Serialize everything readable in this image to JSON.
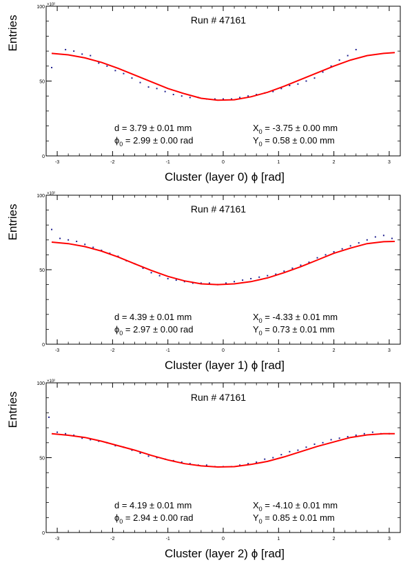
{
  "chart_data": [
    {
      "type": "scatter",
      "title": "Run # 47161",
      "xlabel": "Cluster (layer 0) ϕ [rad]",
      "ylabel": "Entries",
      "y_exponent": "×10²",
      "xlim": [
        -3.2,
        3.2
      ],
      "ylim": [
        0,
        100
      ],
      "xticks": [
        -3,
        -2,
        -1,
        0,
        1,
        2,
        3
      ],
      "yticks": [
        0,
        50,
        100
      ],
      "series": [
        {
          "kind": "data",
          "color": "#1f1f8f",
          "x": [
            -3.1,
            -2.85,
            -2.7,
            -2.55,
            -2.4,
            -2.25,
            -2.1,
            -1.95,
            -1.8,
            -1.65,
            -1.5,
            -1.35,
            -1.2,
            -1.05,
            -0.9,
            -0.75,
            -0.6,
            -0.45,
            -0.3,
            -0.15,
            0.0,
            0.15,
            0.3,
            0.45,
            0.6,
            0.75,
            0.9,
            1.05,
            1.2,
            1.35,
            1.5,
            1.65,
            1.8,
            1.95,
            2.1,
            2.25,
            2.4
          ],
          "y": [
            59,
            71,
            70,
            68,
            67,
            62,
            60,
            57,
            55,
            52,
            49,
            46,
            45,
            43,
            41,
            40,
            39,
            39,
            38,
            38,
            38,
            38,
            39,
            40,
            41,
            42,
            43,
            45,
            47,
            48,
            50,
            52,
            56,
            60,
            64,
            67,
            71
          ]
        },
        {
          "kind": "fit",
          "color": "#ff0000",
          "x": [
            -3.1,
            -2.8,
            -2.5,
            -2.2,
            -1.9,
            -1.6,
            -1.3,
            -1.0,
            -0.7,
            -0.4,
            -0.1,
            0.2,
            0.5,
            0.8,
            1.1,
            1.4,
            1.7,
            2.0,
            2.3,
            2.6,
            2.9,
            3.1
          ],
          "y": [
            68.5,
            67.5,
            65.5,
            62.5,
            58.5,
            54,
            49.5,
            45,
            41.5,
            38.5,
            37.2,
            37.5,
            39.5,
            42.5,
            46.5,
            51,
            55.5,
            60,
            64,
            67,
            68.5,
            69
          ]
        }
      ],
      "fit_results": {
        "d": "d = 3.79 ± 0.01 mm",
        "phi": "0",
        "phi_val": " = 2.99 ± 0.00 rad",
        "x0_sub": "0",
        "x0_val": " = -3.75 ± 0.00 mm",
        "y0_sub": "0",
        "y0_val": " = 0.58 ± 0.00 mm"
      }
    },
    {
      "type": "scatter",
      "title": "Run # 47161",
      "xlabel": "Cluster (layer 1) ϕ [rad]",
      "ylabel": "Entries",
      "y_exponent": "×10²",
      "xlim": [
        -3.2,
        3.2
      ],
      "ylim": [
        0,
        100
      ],
      "xticks": [
        -3,
        -2,
        -1,
        0,
        1,
        2,
        3
      ],
      "yticks": [
        0,
        50,
        100
      ],
      "series": [
        {
          "kind": "data",
          "color": "#1f1f8f",
          "x": [
            -3.1,
            -2.95,
            -2.8,
            -2.65,
            -2.5,
            -2.35,
            -2.2,
            -2.05,
            -1.9,
            -1.75,
            -1.6,
            -1.45,
            -1.3,
            -1.15,
            -1.0,
            -0.85,
            -0.7,
            -0.55,
            -0.4,
            -0.25,
            -0.1,
            0.05,
            0.2,
            0.35,
            0.5,
            0.65,
            0.8,
            0.95,
            1.1,
            1.25,
            1.4,
            1.55,
            1.7,
            1.85,
            2.0,
            2.15,
            2.3,
            2.45,
            2.6,
            2.75,
            2.9,
            3.05
          ],
          "y": [
            77,
            71,
            70,
            69,
            67,
            65,
            63,
            61,
            59,
            56,
            54,
            51,
            48,
            46,
            44,
            43,
            42,
            41,
            41,
            41,
            40,
            41,
            42,
            43,
            44,
            45,
            46,
            47,
            49,
            51,
            53,
            55,
            58,
            60,
            62,
            64,
            66,
            68,
            70,
            72,
            73,
            71
          ]
        },
        {
          "kind": "fit",
          "color": "#ff0000",
          "x": [
            -3.1,
            -2.8,
            -2.5,
            -2.2,
            -1.9,
            -1.6,
            -1.3,
            -1.0,
            -0.7,
            -0.4,
            -0.1,
            0.2,
            0.5,
            0.8,
            1.1,
            1.4,
            1.7,
            2.0,
            2.3,
            2.6,
            2.9,
            3.1
          ],
          "y": [
            68.5,
            67.5,
            65.5,
            62.5,
            58.5,
            54,
            49.5,
            45.5,
            42.5,
            40.5,
            40,
            40.5,
            42,
            44.5,
            48,
            52,
            56.5,
            61,
            64.5,
            67.5,
            68.8,
            69
          ]
        }
      ],
      "fit_results": {
        "d": "d = 4.39 ± 0.01 mm",
        "phi": "0",
        "phi_val": " = 2.97 ± 0.00 rad",
        "x0_sub": "0",
        "x0_val": " = -4.33 ± 0.01 mm",
        "y0_sub": "0",
        "y0_val": " = 0.73 ± 0.01 mm"
      }
    },
    {
      "type": "scatter",
      "title": "Run # 47161",
      "xlabel": "Cluster (layer 2) ϕ [rad]",
      "ylabel": "Entries",
      "y_exponent": "×10²",
      "xlim": [
        -3.2,
        3.2
      ],
      "ylim": [
        0,
        100
      ],
      "xticks": [
        -3,
        -2,
        -1,
        0,
        1,
        2,
        3
      ],
      "yticks": [
        0,
        50,
        100
      ],
      "series": [
        {
          "kind": "data",
          "color": "#1f1f8f",
          "x": [
            -3.15,
            -3.0,
            -2.85,
            -2.7,
            -2.55,
            -2.4,
            -2.25,
            -2.1,
            -1.95,
            -1.8,
            -1.65,
            -1.5,
            -1.35,
            -1.2,
            -1.05,
            -0.9,
            -0.75,
            -0.6,
            -0.45,
            -0.3,
            -0.15,
            0.0,
            0.15,
            0.3,
            0.45,
            0.6,
            0.75,
            0.9,
            1.05,
            1.2,
            1.35,
            1.5,
            1.65,
            1.8,
            1.95,
            2.1,
            2.25,
            2.4,
            2.55,
            2.7,
            2.85,
            3.0
          ],
          "y": [
            77,
            67,
            66,
            65,
            63,
            62,
            61,
            60,
            58,
            57,
            55,
            53,
            51,
            50,
            49,
            48,
            47,
            46,
            45,
            45,
            44,
            44,
            44,
            45,
            46,
            47,
            49,
            50,
            52,
            54,
            55,
            57,
            59,
            60,
            62,
            63,
            64,
            65,
            66,
            67,
            66,
            66
          ]
        },
        {
          "kind": "fit",
          "color": "#ff0000",
          "x": [
            -3.1,
            -2.8,
            -2.5,
            -2.2,
            -1.9,
            -1.6,
            -1.3,
            -1.0,
            -0.7,
            -0.4,
            -0.1,
            0.2,
            0.5,
            0.8,
            1.1,
            1.4,
            1.7,
            2.0,
            2.3,
            2.6,
            2.9,
            3.1
          ],
          "y": [
            66,
            65,
            63.5,
            61,
            58,
            55,
            51.5,
            48.5,
            46,
            44.5,
            43.8,
            44,
            45.5,
            47.5,
            50.5,
            54,
            57.5,
            60.5,
            63.5,
            65.2,
            66,
            66
          ]
        }
      ],
      "fit_results": {
        "d": "d = 4.19 ± 0.01 mm",
        "phi": "0",
        "phi_val": " = 2.94 ± 0.00 rad",
        "x0_sub": "0",
        "x0_val": " = -4.10 ± 0.01 mm",
        "y0_sub": "0",
        "y0_val": " = 0.85 ± 0.01 mm"
      }
    }
  ]
}
